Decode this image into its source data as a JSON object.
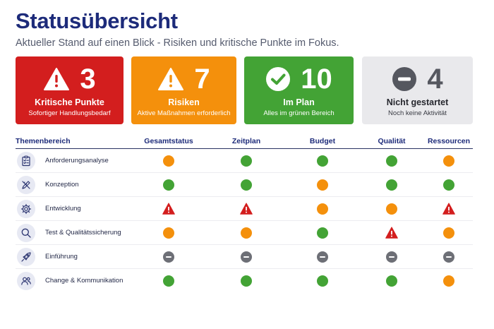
{
  "header": {
    "title": "Statusübersicht",
    "subtitle": "Aktueller Stand auf einen Blick - Risiken und kritische Punkte im Fokus."
  },
  "colors": {
    "critical": "#d31e1e",
    "risk": "#f4900c",
    "on_plan": "#43a335",
    "not_started": "#6d6f76",
    "title": "#1d2b7a"
  },
  "summary_cards": [
    {
      "icon": "warning-triangle-icon",
      "count": "3",
      "label": "Kritische Punkte",
      "sub": "Sofortiger Handlungsbedarf"
    },
    {
      "icon": "warning-triangle-icon",
      "count": "7",
      "label": "Risiken",
      "sub": "Aktive Maßnahmen erforderlich"
    },
    {
      "icon": "checkmark-circle-icon",
      "count": "10",
      "label": "Im Plan",
      "sub": "Alles im grünen Bereich"
    },
    {
      "icon": "minus-circle-icon",
      "count": "4",
      "label": "Nicht gestartet",
      "sub": "Noch keine Aktivität"
    }
  ],
  "table": {
    "columns": [
      "Themenbereich",
      "Gesamtstatus",
      "Zeitplan",
      "Budget",
      "Qualität",
      "Ressourcen"
    ],
    "rows": [
      {
        "icon": "clipboard-checklist-icon",
        "label": "Anforderungsanalyse",
        "statuses": [
          "risk",
          "ok",
          "ok",
          "ok",
          "risk"
        ]
      },
      {
        "icon": "pencil-ruler-icon",
        "label": "Konzeption",
        "statuses": [
          "ok",
          "ok",
          "risk",
          "ok",
          "ok"
        ]
      },
      {
        "icon": "gear-icon",
        "label": "Entwicklung",
        "statuses": [
          "critical",
          "critical",
          "risk",
          "risk",
          "critical"
        ]
      },
      {
        "icon": "magnifier-icon",
        "label": "Test & Qualitätssicherung",
        "statuses": [
          "risk",
          "risk",
          "ok",
          "critical",
          "risk"
        ]
      },
      {
        "icon": "rocket-icon",
        "label": "Einführung",
        "statuses": [
          "not_started",
          "not_started",
          "not_started",
          "not_started",
          "not_started"
        ]
      },
      {
        "icon": "people-icon",
        "label": "Change & Kommunikation",
        "statuses": [
          "ok",
          "ok",
          "ok",
          "ok",
          "risk"
        ]
      }
    ]
  }
}
